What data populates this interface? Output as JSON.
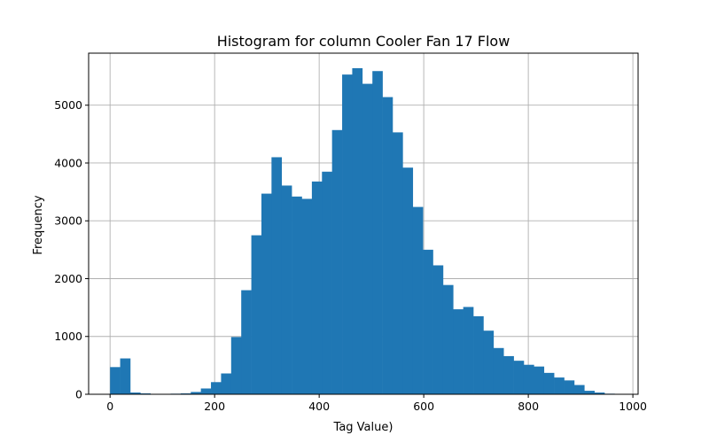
{
  "chart_data": {
    "type": "bar",
    "title": "Histogram for column Cooler Fan 17 Flow",
    "xlabel": "Tag Value)",
    "ylabel": "Frequency",
    "xlim": [
      -41,
      1010
    ],
    "ylim": [
      0,
      5900
    ],
    "xticks": [
      0,
      200,
      400,
      600,
      800,
      1000
    ],
    "yticks": [
      0,
      1000,
      2000,
      3000,
      4000,
      5000
    ],
    "grid": true,
    "bar_color": "#1f77b4",
    "bin_width": 19.3,
    "bin_start": 0,
    "values": [
      470,
      620,
      30,
      15,
      0,
      0,
      10,
      15,
      40,
      100,
      210,
      360,
      990,
      1800,
      2750,
      3470,
      4100,
      3610,
      3420,
      3380,
      3680,
      3850,
      4570,
      5530,
      5640,
      5370,
      5590,
      5140,
      4530,
      3920,
      3240,
      2500,
      2230,
      1890,
      1470,
      1510,
      1350,
      1100,
      800,
      660,
      580,
      510,
      480,
      370,
      290,
      240,
      160,
      60,
      30,
      10
    ]
  }
}
